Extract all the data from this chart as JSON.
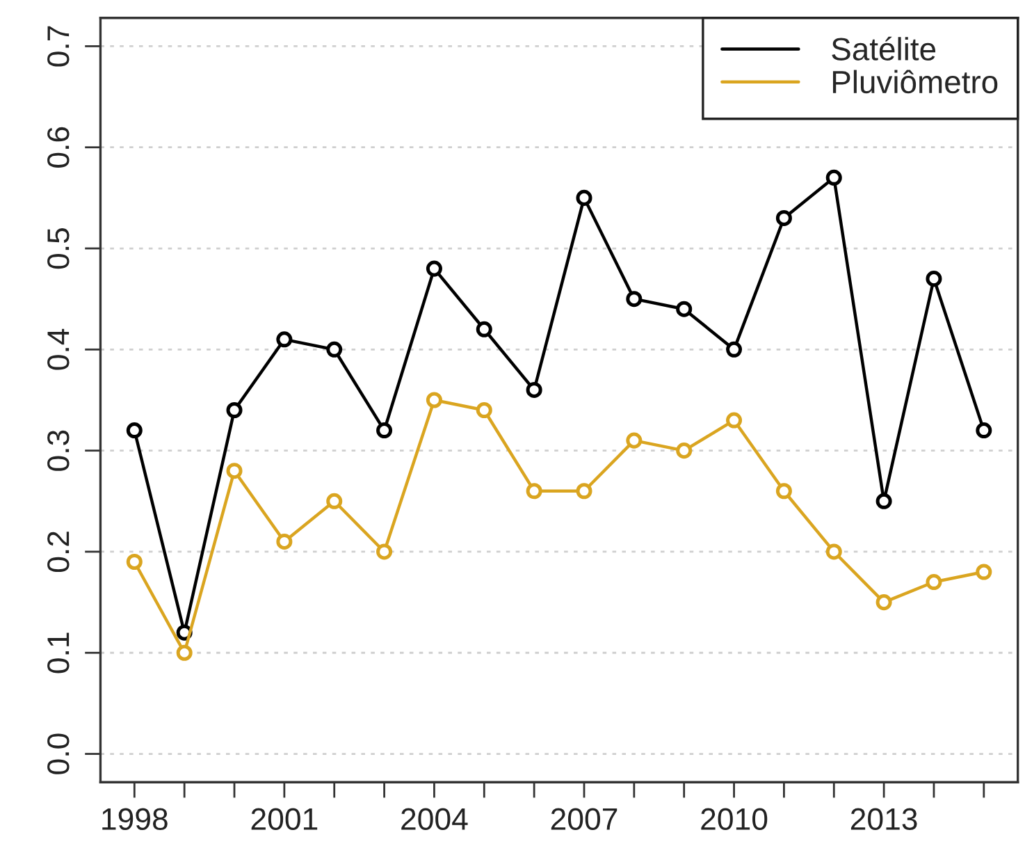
{
  "chart_data": {
    "type": "line",
    "x": [
      1998,
      1999,
      2000,
      2001,
      2002,
      2003,
      2004,
      2005,
      2006,
      2007,
      2008,
      2009,
      2010,
      2011,
      2012,
      2013,
      2014,
      2015
    ],
    "series": [
      {
        "name": "Satélite",
        "color": "#000000",
        "values": [
          0.32,
          0.12,
          0.34,
          0.41,
          0.4,
          0.32,
          0.48,
          0.42,
          0.36,
          0.55,
          0.45,
          0.44,
          0.4,
          0.53,
          0.57,
          0.25,
          0.47,
          0.32
        ]
      },
      {
        "name": "Pluviômetro",
        "color": "#daa520",
        "values": [
          0.19,
          0.1,
          0.28,
          0.21,
          0.25,
          0.2,
          0.35,
          0.34,
          0.26,
          0.26,
          0.31,
          0.3,
          0.33,
          0.26,
          0.2,
          0.15,
          0.17,
          0.18
        ]
      }
    ],
    "xlim": [
      1997.32,
      2015.68
    ],
    "xticks": [
      1998,
      {
        "value": 1999,
        "label": null
      },
      {
        "value": 2000,
        "label": null
      },
      2001,
      {
        "value": 2002,
        "label": null
      },
      {
        "value": 2003,
        "label": null
      },
      2004,
      {
        "value": 2005,
        "label": null
      },
      {
        "value": 2006,
        "label": null
      },
      2007,
      {
        "value": 2008,
        "label": null
      },
      {
        "value": 2009,
        "label": null
      },
      2010,
      {
        "value": 2011,
        "label": null
      },
      {
        "value": 2012,
        "label": null
      },
      2013,
      {
        "value": 2014,
        "label": null
      },
      {
        "value": 2015,
        "label": null
      }
    ],
    "ylim": [
      -0.028,
      0.728
    ],
    "yticks": [
      {
        "value": 0,
        "label": "0.0"
      },
      0.1,
      0.2,
      0.3,
      0.4,
      0.5,
      0.6,
      0.7
    ],
    "grid": "y",
    "legend": "top right",
    "marker": "circle",
    "line_style": "solid"
  }
}
